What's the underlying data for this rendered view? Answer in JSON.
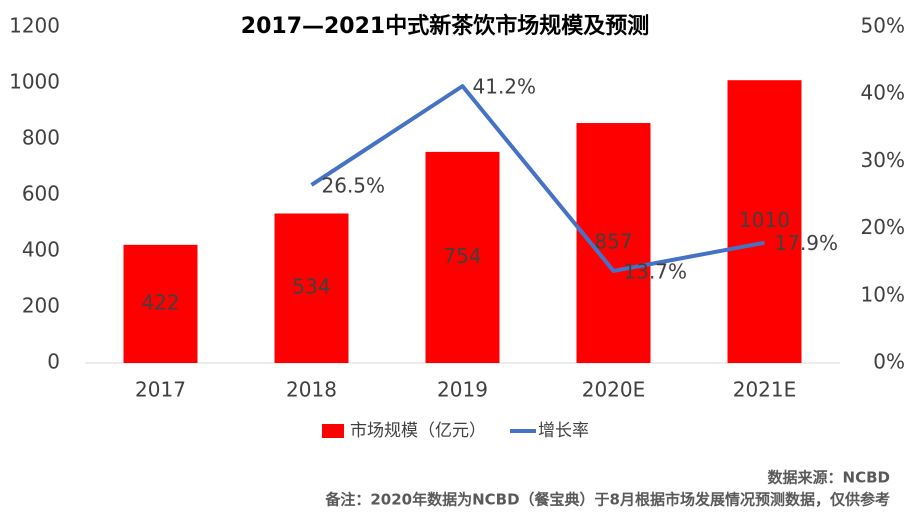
{
  "chart_data": {
    "type": "bar",
    "title": "2017—2021中式新茶饮市场规模及预测",
    "categories": [
      "2017",
      "2018",
      "2019",
      "2020E",
      "2021E"
    ],
    "series": [
      {
        "name": "市场规模（亿元）",
        "type": "bar",
        "color": "#ff0000",
        "values": [
          422,
          534,
          754,
          857,
          1010
        ]
      },
      {
        "name": "增长率",
        "type": "line",
        "color": "#4472c4",
        "axis": "y2",
        "values": [
          null,
          26.5,
          41.2,
          13.7,
          17.9
        ],
        "value_labels": [
          null,
          "26.5%",
          "41.2%",
          "13.7%",
          "17.9%"
        ]
      }
    ],
    "ylim": [
      0,
      1200
    ],
    "yticks": [
      0,
      200,
      400,
      600,
      800,
      1000,
      1200
    ],
    "y2lim": [
      0,
      50
    ],
    "y2ticks": [
      {
        "value": 0,
        "label": "0%"
      },
      {
        "value": 10,
        "label": "10%"
      },
      {
        "value": 20,
        "label": "20%"
      },
      {
        "value": 30,
        "label": "30%"
      },
      {
        "value": 40,
        "label": "40%"
      },
      {
        "value": 50,
        "label": "50%"
      }
    ],
    "grid": false,
    "legend": "bottom",
    "notes": [
      "数据来源：NCBD",
      "备注：2020年数据为NCBD（餐宝典）于8月根据市场发展情况预测数据，仅供参考"
    ]
  }
}
